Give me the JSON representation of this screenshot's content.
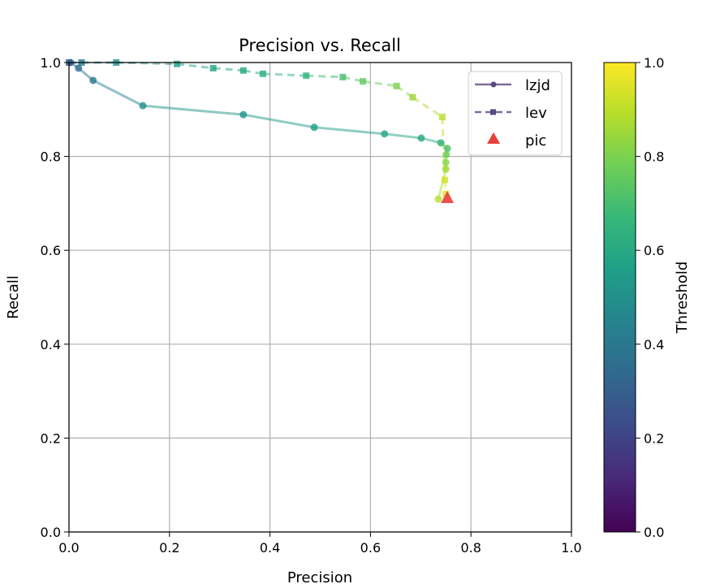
{
  "chart_data": {
    "type": "line",
    "title": "Precision vs. Recall",
    "xlabel": "Precision",
    "ylabel": "Recall",
    "xlim": [
      0,
      1
    ],
    "ylim": [
      0,
      1
    ],
    "xticks": [
      "0.0",
      "0.2",
      "0.4",
      "0.6",
      "0.8",
      "1.0"
    ],
    "yticks": [
      "0.0",
      "0.2",
      "0.4",
      "0.6",
      "0.8",
      "1.0"
    ],
    "grid": true,
    "legend_position": "top-right",
    "colormap": "viridis",
    "colorbar": {
      "label": "Threshold",
      "range": [
        0,
        1
      ],
      "ticks": [
        "0.0",
        "0.2",
        "0.4",
        "0.6",
        "0.8",
        "1.0"
      ]
    },
    "series": [
      {
        "name": "lzjd",
        "marker": "circle",
        "linestyle": "solid",
        "legend_color": "#5b4a82",
        "x": [
          0.003,
          0.019,
          0.048,
          0.147,
          0.347,
          0.488,
          0.628,
          0.701,
          0.74,
          0.753,
          0.751,
          0.75,
          0.75,
          0.735
        ],
        "y": [
          1.0,
          0.988,
          0.962,
          0.908,
          0.889,
          0.862,
          0.848,
          0.839,
          0.829,
          0.817,
          0.804,
          0.787,
          0.773,
          0.709
        ],
        "threshold": [
          0.3,
          0.35,
          0.4,
          0.5,
          0.52,
          0.55,
          0.58,
          0.6,
          0.65,
          0.72,
          0.78,
          0.82,
          0.86,
          0.9
        ]
      },
      {
        "name": "lev",
        "marker": "square",
        "linestyle": "dashed",
        "legend_color": "#5b4a82",
        "x": [
          0.0,
          0.025,
          0.094,
          0.215,
          0.287,
          0.347,
          0.386,
          0.472,
          0.545,
          0.585,
          0.652,
          0.684,
          0.743,
          0.748,
          0.75
        ],
        "y": [
          1.0,
          1.0,
          1.0,
          0.997,
          0.988,
          0.983,
          0.976,
          0.972,
          0.969,
          0.96,
          0.95,
          0.926,
          0.884,
          0.75,
          0.72
        ],
        "threshold": [
          0.3,
          0.4,
          0.5,
          0.55,
          0.58,
          0.6,
          0.62,
          0.65,
          0.7,
          0.75,
          0.8,
          0.85,
          0.9,
          0.93,
          0.95
        ]
      },
      {
        "name": "pic",
        "marker": "triangle",
        "color": "#e8403a",
        "x": [
          0.753
        ],
        "y": [
          0.711
        ]
      }
    ]
  }
}
